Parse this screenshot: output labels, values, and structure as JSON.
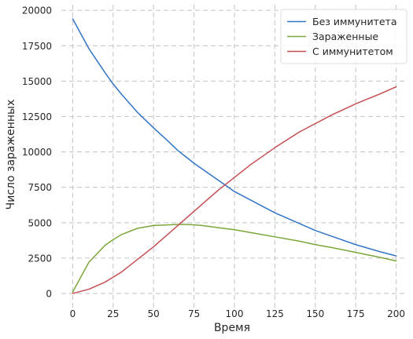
{
  "chart_data": {
    "type": "line",
    "title": "",
    "xlabel": "Время",
    "ylabel": "Число зараженных",
    "xlim": [
      -7,
      207
    ],
    "ylim": [
      -1000,
      20400
    ],
    "x_ticks": [
      0,
      25,
      50,
      75,
      100,
      125,
      150,
      175,
      200
    ],
    "y_ticks": [
      0,
      2500,
      5000,
      7500,
      10000,
      12500,
      15000,
      17500,
      20000
    ],
    "grid": true,
    "grid_style": "dashed",
    "legend_position": "top-right",
    "x": [
      0,
      10,
      20,
      25,
      30,
      40,
      50,
      60,
      65,
      70,
      75,
      80,
      90,
      100,
      110,
      125,
      140,
      150,
      160,
      175,
      190,
      200
    ],
    "series": [
      {
        "name": "Без иммунитета",
        "color": "#3274c5",
        "values": [
          19400,
          17300,
          15600,
          14800,
          14100,
          12800,
          11700,
          10650,
          10100,
          9650,
          9200,
          8800,
          8000,
          7200,
          6600,
          5700,
          4950,
          4450,
          4050,
          3450,
          2950,
          2650
        ]
      },
      {
        "name": "Зараженные",
        "color": "#7ba63a",
        "values": [
          100,
          2200,
          3400,
          3800,
          4150,
          4600,
          4800,
          4850,
          4880,
          4880,
          4850,
          4800,
          4650,
          4500,
          4300,
          4000,
          3700,
          3450,
          3250,
          2900,
          2550,
          2300
        ]
      },
      {
        "name": "С иммунитетом",
        "color": "#c44e52",
        "values": [
          0,
          300,
          800,
          1150,
          1500,
          2400,
          3300,
          4300,
          4800,
          5300,
          5800,
          6300,
          7300,
          8200,
          9100,
          10300,
          11400,
          12000,
          12600,
          13400,
          14100,
          14600
        ]
      }
    ]
  }
}
